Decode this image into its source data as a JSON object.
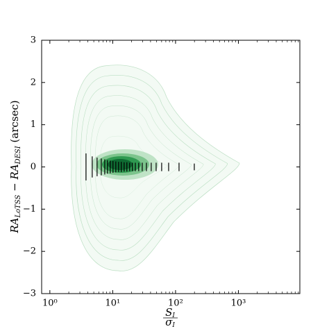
{
  "chart_data": {
    "type": "errorbar",
    "xlabel": {
      "numerator": [
        "S",
        "I"
      ],
      "denominator": [
        "σ",
        "I"
      ]
    },
    "ylabel": [
      "RA",
      "LoTSS",
      " − RA",
      "DESI",
      " (arcsec)"
    ],
    "x": [
      3.76,
      4.72,
      5.64,
      6.58,
      7.47,
      8.25,
      9.14,
      10.1,
      11.2,
      12.4,
      13.7,
      15.2,
      16.8,
      18.6,
      20.6,
      22.9,
      25.9,
      29.5,
      34.4,
      41.0,
      49.1,
      60.1,
      77.6,
      113.6,
      198.7
    ],
    "values": [
      0,
      0,
      0,
      0,
      0,
      0,
      0,
      0,
      0,
      0,
      0,
      0,
      0,
      0,
      0,
      0,
      0,
      0,
      0,
      0,
      0,
      0,
      0,
      0,
      0
    ],
    "errors": [
      0.32,
      0.25,
      0.22,
      0.2,
      0.18,
      0.16,
      0.15,
      0.14,
      0.13,
      0.12,
      0.12,
      0.11,
      0.11,
      0.1,
      0.1,
      0.1,
      0.1,
      0.1,
      0.1,
      0.1,
      0.1,
      0.1,
      0.1,
      0.1,
      0.08
    ],
    "color": "#000000",
    "xscale": "log",
    "xlim": [
      0.74,
      9500
    ],
    "xticks": [
      {
        "value": 1,
        "label": "10⁰"
      },
      {
        "value": 10,
        "label": "10¹"
      },
      {
        "value": 100,
        "label": "10²"
      },
      {
        "value": 1000,
        "label": "10³"
      }
    ],
    "xminorticks": [
      2,
      3,
      4,
      5,
      6,
      7,
      8,
      9,
      20,
      30,
      40,
      50,
      60,
      70,
      80,
      90,
      200,
      300,
      400,
      500,
      600,
      700,
      800,
      900,
      2000,
      3000,
      4000,
      5000,
      6000,
      7000,
      8000,
      9000
    ],
    "ylim": [
      -3,
      3
    ],
    "yticks": [
      {
        "value": -3,
        "label": "−3"
      },
      {
        "value": -2,
        "label": "−2"
      },
      {
        "value": -1,
        "label": "−1"
      },
      0,
      1,
      2,
      3
    ]
  }
}
